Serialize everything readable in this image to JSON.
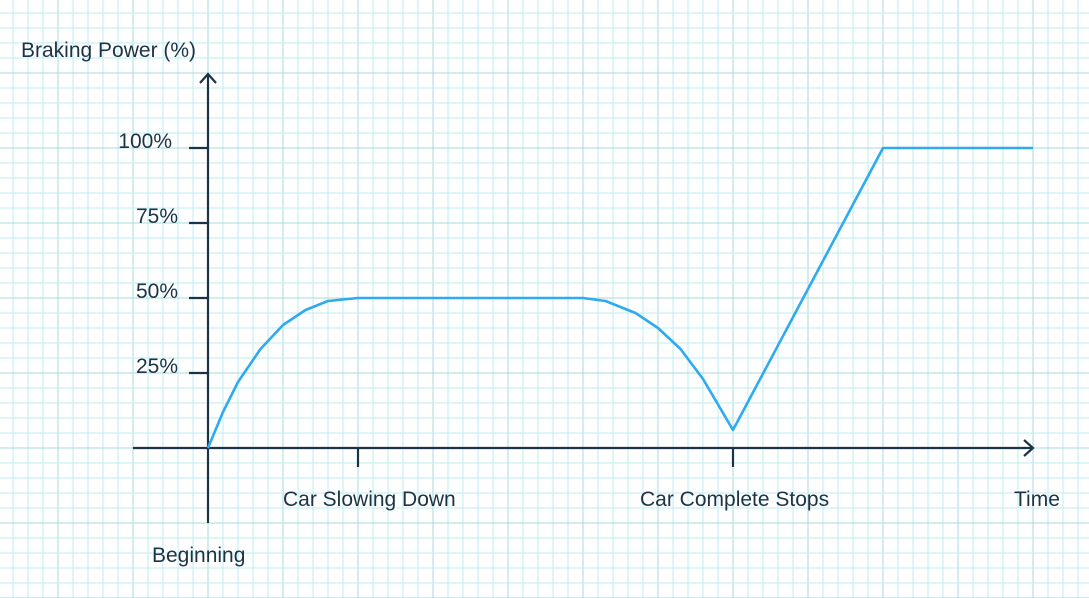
{
  "chart_data": {
    "type": "line",
    "ylabel": "Braking Power (%)",
    "y_ticks": [
      "100%",
      "75%",
      "50%",
      "25%"
    ],
    "y_tick_values": [
      100,
      75,
      50,
      25
    ],
    "ylim": [
      0,
      100
    ],
    "x_labels": {
      "origin": "Beginning",
      "slowing": "Car Slowing Down",
      "stop": "Car Complete Stops",
      "end": "Time"
    },
    "x_tick_values": [
      1,
      3.5
    ],
    "xlim": [
      0,
      5.5
    ],
    "grid": true,
    "colors": {
      "series": "#2eaaf0",
      "axis": "#1b3346",
      "grid_minor": "#bfeef0",
      "grid_major": "#a9d8dc"
    },
    "series": [
      {
        "points": [
          [
            0,
            0
          ],
          [
            0.1,
            12
          ],
          [
            0.2,
            22
          ],
          [
            0.35,
            33
          ],
          [
            0.5,
            41
          ],
          [
            0.65,
            46
          ],
          [
            0.8,
            49
          ],
          [
            1,
            50
          ],
          [
            2.5,
            50
          ],
          [
            2.65,
            49
          ],
          [
            2.85,
            45
          ],
          [
            3.0,
            40
          ],
          [
            3.15,
            33
          ],
          [
            3.3,
            23
          ],
          [
            3.5,
            6
          ],
          [
            4.5,
            100
          ],
          [
            5.5,
            100
          ]
        ]
      }
    ]
  }
}
